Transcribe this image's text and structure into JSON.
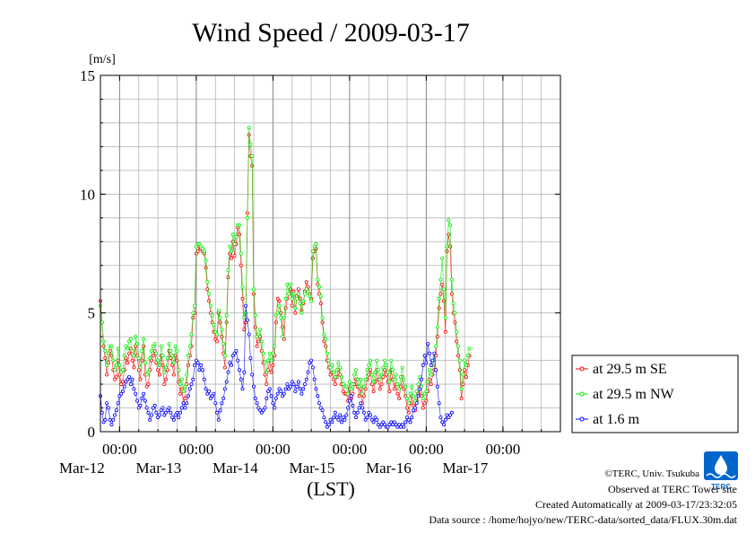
{
  "chart_data": {
    "type": "line",
    "title": "Wind Speed / 2009-03-17",
    "ylabel": "[m/s]",
    "xlabel": "(LST)",
    "ylim": [
      0,
      15
    ],
    "yticks": [
      "0",
      "5",
      "10",
      "15"
    ],
    "xlim_hours": [
      0,
      144
    ],
    "x_start": "2009-03-11 18:00 LST",
    "xtick_time_label": "00:00",
    "xtick_dates": [
      "Mar-12",
      "Mar-13",
      "Mar-14",
      "Mar-15",
      "Mar-16",
      "Mar-17"
    ],
    "sample_interval_min": 30,
    "grid": true,
    "legend_position": "right",
    "series": [
      {
        "name": "at 29.5 m SE",
        "color": "#ff0000",
        "values": [
          5.5,
          4.6,
          3.6,
          3.1,
          2.4,
          2.9,
          3.4,
          3.2,
          2.6,
          2.2,
          2.3,
          3.0,
          2.4,
          2.0,
          2.1,
          2.6,
          3.1,
          2.9,
          3.3,
          3.5,
          3.0,
          2.7,
          3.6,
          3.2,
          2.6,
          2.2,
          3.0,
          3.6,
          2.4,
          1.9,
          2.0,
          2.6,
          3.0,
          3.2,
          3.4,
          2.9,
          2.6,
          2.4,
          3.2,
          2.8,
          2.0,
          2.2,
          2.6,
          3.4,
          3.1,
          2.8,
          2.4,
          3.2,
          3.0,
          2.1,
          1.6,
          1.8,
          1.2,
          1.4,
          2.0,
          2.8,
          3.2,
          3.6,
          4.8,
          5.0,
          7.5,
          7.6,
          7.8,
          7.7,
          7.6,
          7.5,
          6.9,
          6.0,
          5.5,
          5.0,
          4.6,
          4.2,
          3.9,
          3.8,
          5.0,
          4.6,
          4.0,
          3.3,
          2.7,
          4.6,
          6.5,
          7.5,
          7.3,
          8.0,
          7.4,
          7.9,
          8.6,
          8.3,
          7.0,
          5.6,
          4.3,
          4.6,
          9.2,
          12.5,
          11.6,
          11.2,
          5.8,
          4.4,
          3.6,
          3.8,
          4.0,
          3.4,
          2.9,
          2.4,
          2.0,
          2.6,
          3.0,
          2.5,
          2.8,
          3.2,
          4.6,
          5.6,
          5.5,
          5.0,
          4.4,
          3.9,
          5.2,
          5.6,
          5.8,
          6.0,
          5.3,
          5.9,
          5.0,
          5.7,
          6.0,
          5.6,
          5.1,
          5.4,
          5.9,
          6.3,
          6.1,
          5.8,
          5.6,
          7.3,
          7.6,
          7.7,
          6.2,
          5.8,
          5.4,
          4.6,
          3.8,
          3.6,
          3.0,
          2.7,
          2.4,
          2.5,
          2.2,
          2.0,
          2.3,
          2.6,
          2.4,
          2.0,
          1.7,
          1.6,
          1.6,
          1.3,
          1.8,
          1.4,
          1.6,
          2.0,
          2.2,
          1.9,
          1.5,
          1.8,
          1.2,
          1.5,
          1.8,
          2.2,
          2.4,
          2.6,
          2.0,
          1.7,
          2.1,
          2.6,
          2.2,
          1.8,
          2.0,
          2.3,
          2.6,
          2.4,
          2.1,
          1.7,
          2.6,
          2.2,
          1.8,
          2.0,
          1.6,
          1.4,
          1.9,
          2.3,
          1.8,
          1.5,
          1.0,
          0.8,
          1.2,
          1.5,
          1.1,
          0.9,
          1.3,
          1.6,
          1.9,
          1.5,
          1.0,
          1.2,
          1.3,
          1.7,
          2.2,
          2.0,
          2.4,
          2.6,
          3.2,
          4.0,
          5.2,
          5.8,
          6.2,
          5.5,
          4.2,
          7.6,
          8.3,
          7.8,
          5.8,
          5.0,
          4.6,
          3.8,
          3.2,
          2.6,
          1.4,
          2.0,
          2.6,
          2.3,
          2.8,
          3.2
        ]
      },
      {
        "name": "at 29.5 m NW",
        "color": "#00ee00",
        "values": [
          5.3,
          4.6,
          3.8,
          3.4,
          2.8,
          3.3,
          3.6,
          3.6,
          3.0,
          2.6,
          2.8,
          3.5,
          2.8,
          2.5,
          2.6,
          3.2,
          3.6,
          3.5,
          3.8,
          3.9,
          3.4,
          3.2,
          4.0,
          3.7,
          3.1,
          2.7,
          3.4,
          3.9,
          2.9,
          2.4,
          2.5,
          3.1,
          3.4,
          3.6,
          3.7,
          3.3,
          3.0,
          2.8,
          3.6,
          3.2,
          2.5,
          2.7,
          3.1,
          3.7,
          3.4,
          3.2,
          2.9,
          3.6,
          3.4,
          2.6,
          2.0,
          2.2,
          1.7,
          1.9,
          2.4,
          3.2,
          3.6,
          4.1,
          5.0,
          5.3,
          7.8,
          7.9,
          7.9,
          7.8,
          7.7,
          7.6,
          7.2,
          6.3,
          5.8,
          5.3,
          4.9,
          4.5,
          4.2,
          4.1,
          5.1,
          4.8,
          4.3,
          3.7,
          3.2,
          4.9,
          6.8,
          7.8,
          7.6,
          8.3,
          7.9,
          8.2,
          8.7,
          8.7,
          7.5,
          6.1,
          4.8,
          5.0,
          9.0,
          12.8,
          12.1,
          11.6,
          6.0,
          4.9,
          4.0,
          4.1,
          4.3,
          3.8,
          3.3,
          2.9,
          2.5,
          3.0,
          3.3,
          3.0,
          3.3,
          3.6,
          4.9,
          5.0,
          5.3,
          4.8,
          4.0,
          4.8,
          5.6,
          6.2,
          5.8,
          6.2,
          5.6,
          5.8,
          5.2,
          5.6,
          5.8,
          5.4,
          5.0,
          5.5,
          5.8,
          6.0,
          5.9,
          5.7,
          5.5,
          7.6,
          7.8,
          7.9,
          6.4,
          6.1,
          5.7,
          4.8,
          4.1,
          3.9,
          3.3,
          3.0,
          2.7,
          2.8,
          2.5,
          2.3,
          2.6,
          2.9,
          2.7,
          2.3,
          2.0,
          1.9,
          1.9,
          1.6,
          2.1,
          1.8,
          2.0,
          2.4,
          2.6,
          2.2,
          1.9,
          2.2,
          1.6,
          1.9,
          2.2,
          2.6,
          2.8,
          3.0,
          2.4,
          2.1,
          2.5,
          3.0,
          2.6,
          2.2,
          2.4,
          2.7,
          3.0,
          2.8,
          2.5,
          2.1,
          3.0,
          2.6,
          2.2,
          2.4,
          2.0,
          1.8,
          2.3,
          2.7,
          2.2,
          1.9,
          1.4,
          1.2,
          1.6,
          1.9,
          1.5,
          1.3,
          1.7,
          2.0,
          2.3,
          1.9,
          1.4,
          1.6,
          1.7,
          2.1,
          2.6,
          2.4,
          2.8,
          3.0,
          3.6,
          4.4,
          5.6,
          6.4,
          7.3,
          6.0,
          4.8,
          7.8,
          8.9,
          8.7,
          6.4,
          5.4,
          5.0,
          4.2,
          3.6,
          3.0,
          1.8,
          2.4,
          3.0,
          2.8,
          3.2,
          3.5
        ]
      },
      {
        "name": "at 1.6 m",
        "color": "#0000ff",
        "values": [
          1.5,
          0.8,
          0.4,
          0.5,
          1.2,
          1.0,
          0.5,
          0.3,
          0.5,
          0.7,
          0.9,
          1.2,
          1.5,
          1.6,
          1.7,
          1.9,
          2.1,
          2.2,
          2.3,
          2.0,
          2.2,
          1.8,
          1.6,
          1.3,
          1.0,
          1.1,
          1.4,
          1.6,
          1.3,
          1.0,
          0.8,
          0.5,
          0.7,
          1.0,
          1.1,
          0.8,
          0.6,
          0.7,
          0.9,
          1.0,
          0.7,
          0.8,
          0.9,
          1.0,
          0.8,
          0.6,
          0.5,
          0.7,
          0.8,
          0.6,
          0.8,
          1.0,
          1.2,
          1.0,
          1.2,
          1.5,
          1.8,
          2.0,
          2.2,
          2.8,
          3.0,
          2.9,
          2.6,
          2.8,
          2.6,
          2.2,
          1.8,
          1.6,
          1.7,
          1.4,
          1.5,
          1.6,
          1.2,
          0.8,
          0.5,
          0.9,
          1.2,
          1.4,
          1.8,
          2.1,
          2.5,
          2.9,
          2.8,
          3.2,
          3.3,
          3.4,
          3.0,
          2.6,
          2.2,
          1.8,
          2.5,
          5.3,
          4.7,
          4.1,
          3.1,
          2.4,
          1.9,
          1.4,
          1.2,
          1.0,
          0.9,
          0.8,
          0.9,
          1.0,
          1.4,
          1.7,
          1.8,
          1.5,
          1.2,
          1.0,
          1.4,
          1.6,
          1.8,
          1.7,
          1.5,
          1.6,
          1.8,
          2.0,
          1.8,
          1.9,
          2.1,
          2.0,
          1.7,
          1.9,
          2.1,
          1.8,
          1.6,
          1.8,
          2.0,
          2.2,
          2.5,
          2.9,
          3.0,
          2.7,
          2.2,
          1.8,
          1.5,
          1.2,
          1.0,
          0.9,
          0.6,
          0.4,
          0.2,
          0.3,
          0.5,
          0.4,
          0.6,
          0.8,
          0.6,
          0.5,
          0.7,
          0.4,
          0.6,
          0.5,
          0.7,
          1.0,
          1.3,
          1.5,
          1.1,
          0.8,
          0.6,
          0.8,
          1.0,
          1.2,
          1.0,
          0.8,
          0.5,
          0.6,
          0.8,
          0.7,
          0.5,
          0.4,
          0.6,
          0.5,
          0.3,
          0.2,
          0.3,
          0.4,
          0.3,
          0.2,
          0.2,
          0.3,
          0.4,
          0.3,
          0.4,
          0.3,
          0.2,
          0.3,
          0.2,
          0.3,
          0.2,
          0.4,
          0.6,
          0.5,
          0.4,
          0.6,
          0.9,
          1.0,
          1.2,
          1.5,
          1.8,
          2.2,
          2.8,
          3.2,
          2.9,
          3.7,
          3.3,
          2.8,
          3.0,
          3.3,
          2.6,
          1.9,
          1.2,
          0.6,
          0.4,
          0.3,
          0.5,
          0.7,
          0.6,
          0.7,
          0.8
        ]
      }
    ]
  },
  "footer": {
    "credit": "©TERC, Univ. Tsukuba",
    "observed": "Observed at TERC Tower site",
    "created": "Created Automatically at 2009-03-17/23:32:05",
    "source": "Data source : /home/hojyo/new/TERC-data/sorted_data/FLUX.30m.dat"
  },
  "logo": {
    "text": "TERC",
    "color": "#0066cc"
  }
}
